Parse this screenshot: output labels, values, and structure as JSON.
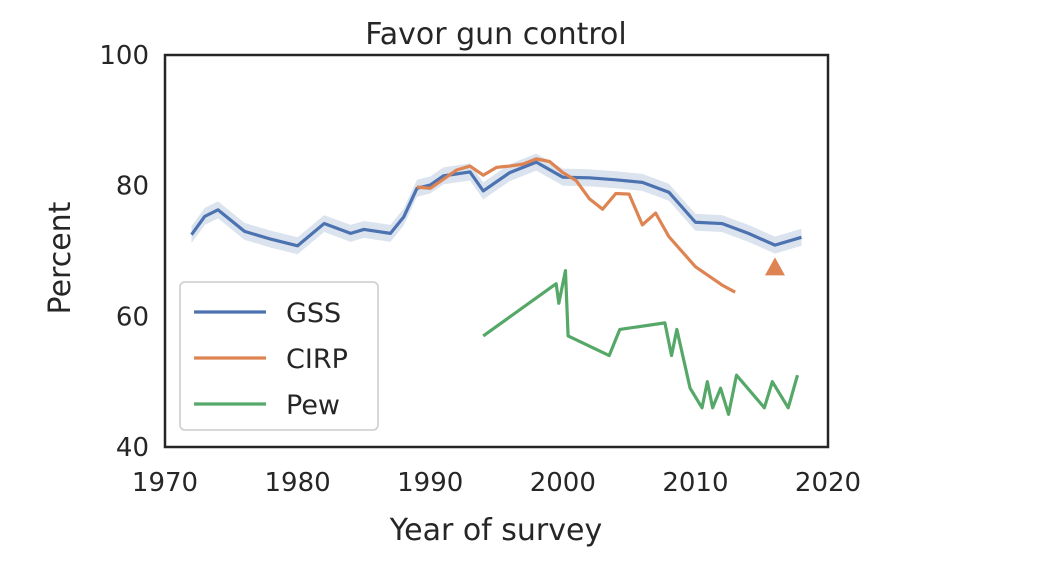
{
  "chart_data": {
    "type": "line",
    "title": "Favor gun control",
    "xlabel": "Year of survey",
    "ylabel": "Percent",
    "xlim": [
      1970,
      2020
    ],
    "ylim": [
      40,
      100
    ],
    "xticks": [
      "1970",
      "1980",
      "1990",
      "2000",
      "2010",
      "2020"
    ],
    "yticks": [
      "40",
      "60",
      "80",
      "100"
    ],
    "grid": false,
    "legend": {
      "position": "lower-left"
    },
    "series": [
      {
        "name": "GSS",
        "color": "#4c72b0",
        "band_color": "#4c72b0",
        "band_halfwidth": 1.3,
        "x": [
          1972,
          1973,
          1974,
          1976,
          1978,
          1980,
          1982,
          1984,
          1985,
          1987,
          1988,
          1989,
          1990,
          1991,
          1993,
          1994,
          1996,
          1998,
          2000,
          2002,
          2004,
          2006,
          2008,
          2010,
          2012,
          2014,
          2016,
          2018
        ],
        "y": [
          72.5,
          75.3,
          76.3,
          73.0,
          71.8,
          70.8,
          74.2,
          72.7,
          73.3,
          72.7,
          75.2,
          79.6,
          80.1,
          81.5,
          82.1,
          79.2,
          82.0,
          83.6,
          81.3,
          81.2,
          80.9,
          80.5,
          79.0,
          74.4,
          74.2,
          72.7,
          70.9,
          72.1
        ]
      },
      {
        "name": "CIRP",
        "color": "#dd8452",
        "x": [
          1989,
          1990,
          1991,
          1992,
          1993,
          1994,
          1995,
          1996,
          1997,
          1998,
          1999,
          2000,
          2001,
          2002,
          2003,
          2004,
          2005,
          2006,
          2007,
          2008,
          2009,
          2010,
          2011,
          2012,
          2013
        ],
        "y": [
          79.8,
          79.6,
          81.0,
          82.4,
          83.0,
          81.6,
          82.8,
          83.0,
          83.3,
          84.1,
          83.7,
          82.0,
          80.8,
          78.0,
          76.4,
          78.8,
          78.7,
          74.0,
          75.8,
          72.2,
          69.9,
          67.6,
          66.2,
          64.8,
          63.7
        ],
        "extra_point": {
          "x": 2016,
          "y": 67.5,
          "marker": "triangle"
        }
      },
      {
        "name": "Pew",
        "color": "#55a868",
        "x": [
          1994,
          1999.5,
          1999.7,
          2000.2,
          2000.4,
          2003.5,
          2004.3,
          2007.7,
          2008.2,
          2008.6,
          2009.6,
          2010.5,
          2010.9,
          2011.3,
          2011.9,
          2012.5,
          2013.1,
          2015.2,
          2015.8,
          2017.0,
          2017.7
        ],
        "y": [
          57,
          65,
          62,
          67,
          57,
          54,
          58,
          59,
          54,
          58,
          49,
          46,
          50,
          46,
          49,
          45,
          51,
          46,
          50,
          46,
          51
        ]
      }
    ]
  }
}
